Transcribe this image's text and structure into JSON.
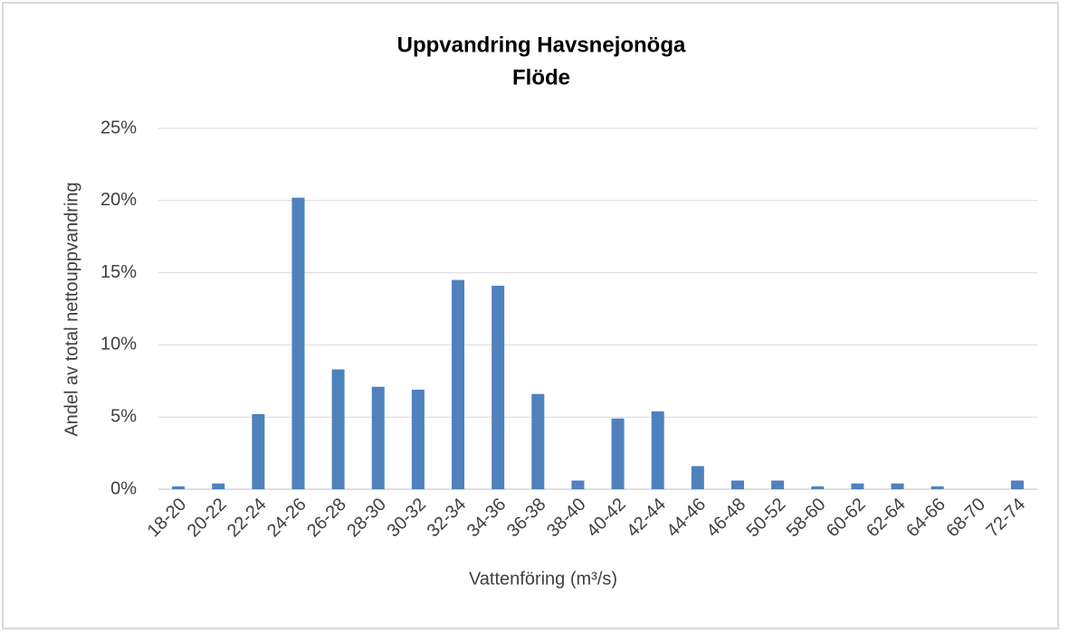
{
  "chart_data": {
    "type": "bar",
    "title": "Uppvandring Havsnejonöga",
    "subtitle": "Flöde",
    "x_label": "Vattenföring  (m³/s)",
    "y_label": "Andel av total  nettouppvandring",
    "categories": [
      "18-20",
      "20-22",
      "22-24",
      "24-26",
      "26-28",
      "28-30",
      "30-32",
      "32-34",
      "34-36",
      "36-38",
      "38-40",
      "40-42",
      "42-44",
      "44-46",
      "46-48",
      "50-52",
      "58-60",
      "60-62",
      "62-64",
      "64-66",
      "68-70",
      "72-74"
    ],
    "values": [
      0.2,
      0.4,
      5.2,
      20.2,
      8.3,
      7.1,
      6.9,
      14.5,
      14.1,
      6.6,
      0.6,
      4.9,
      5.4,
      1.6,
      0.6,
      0.6,
      0.2,
      0.4,
      0.4,
      0.2,
      0,
      0.6
    ],
    "color": "#4f81bd",
    "ylim": [
      0,
      25
    ],
    "yticks": [
      {
        "value": 0,
        "label": "0%"
      },
      {
        "value": 5,
        "label": "5%"
      },
      {
        "value": 10,
        "label": "10%"
      },
      {
        "value": 15,
        "label": "15%"
      },
      {
        "value": 20,
        "label": "20%"
      },
      {
        "value": 25,
        "label": "25%"
      }
    ],
    "grid": true
  }
}
